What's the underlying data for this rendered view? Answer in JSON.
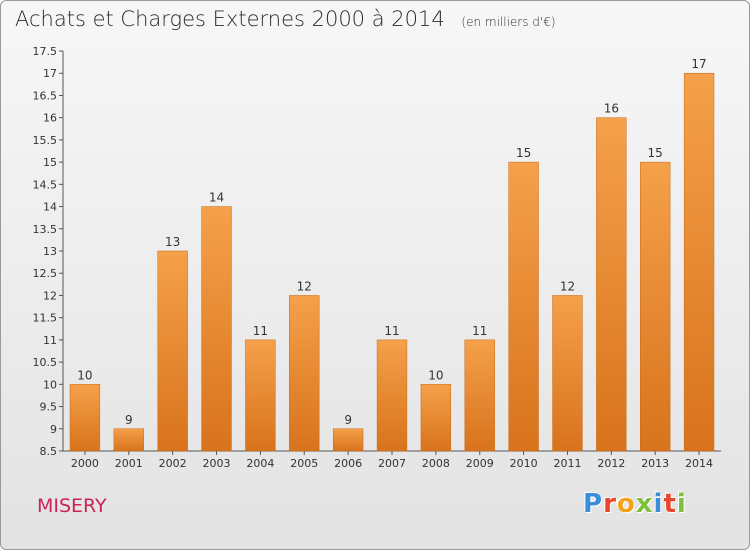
{
  "chart_data": {
    "type": "bar",
    "title": "Achats et Charges Externes 2000 à 2014",
    "subtitle": "(en milliers d'€)",
    "categories": [
      "2000",
      "2001",
      "2002",
      "2003",
      "2004",
      "2005",
      "2006",
      "2007",
      "2008",
      "2009",
      "2010",
      "2011",
      "2012",
      "2013",
      "2014"
    ],
    "values": [
      10,
      9,
      13,
      14,
      11,
      12,
      9,
      11,
      10,
      11,
      15,
      12,
      16,
      15,
      17
    ],
    "ylim": [
      8.5,
      17.5
    ],
    "yticks": [
      "8.5",
      "9",
      "9.5",
      "10",
      "10.5",
      "11",
      "11.5",
      "12",
      "12.5",
      "13",
      "13.5",
      "14",
      "14.5",
      "15",
      "15.5",
      "16",
      "16.5",
      "17",
      "17.5"
    ],
    "grid": false,
    "bar_color": "#f5a04a",
    "bar_color_dark": "#d8731c"
  },
  "footer": {
    "commune": "MISERY",
    "logo_letters": [
      "P",
      "r",
      "o",
      "x",
      "i",
      "t",
      "i"
    ],
    "logo_colors": [
      "#3a8fd8",
      "#e8452c",
      "#f3a21d",
      "#7dc13c",
      "#3a8fd8",
      "#e8452c",
      "#7dc13c"
    ]
  }
}
